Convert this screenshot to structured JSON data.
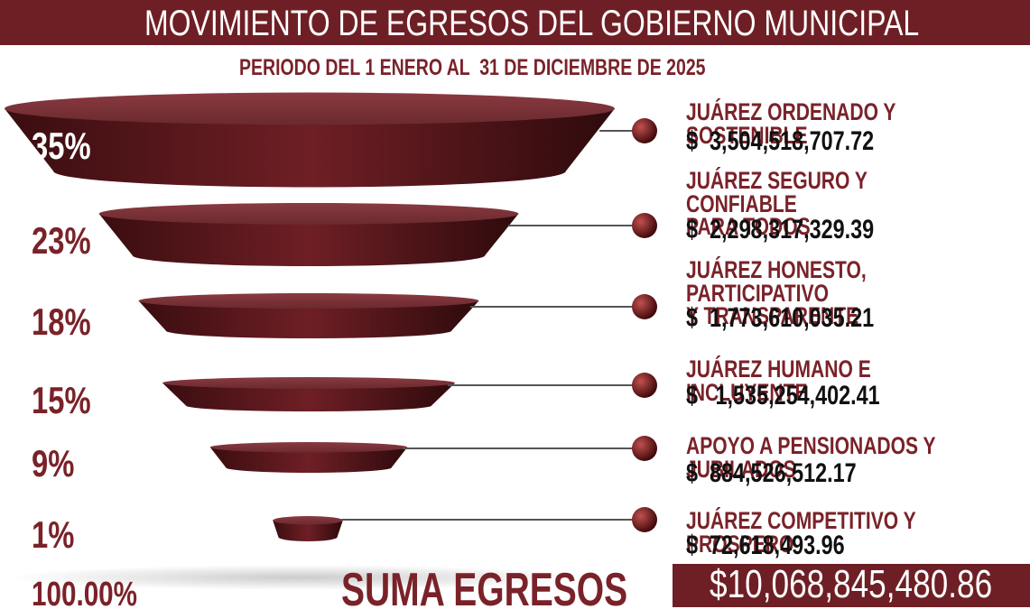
{
  "chart_data": {
    "type": "funnel",
    "title": "MOVIMIENTO DE EGRESOS DEL GOBIERNO MUNICIPAL",
    "subtitle": "PERIODO DEL 1 ENERO AL  31 DE DICIEMBRE DE 2025",
    "categories": [
      "JUÁREZ ORDENADO Y SOSTENIBLE",
      "JUÁREZ SEGURO Y CONFIABLE\nPARA TODOS",
      "JUÁREZ HONESTO, PARTICIPATIVO\nY TRANSPARENTE",
      "JUÁREZ HUMANO E INCLUYENTE",
      "APOYO A PENSIONADOS Y JUBILADOS",
      "JUÁREZ COMPETITIVO Y PROSPERO"
    ],
    "values": [
      35,
      23,
      18,
      15,
      9,
      1
    ],
    "value_labels": [
      "35%",
      "23%",
      "18%",
      "15%",
      "9%",
      "1%"
    ],
    "amounts": [
      3504518707.72,
      2298317329.39,
      1773610035.21,
      1535254402.41,
      884526512.17,
      72618493.96
    ],
    "amount_labels": [
      "$  3,504,518,707.72",
      "$  2,298,317,329.39",
      "$  1,773,610,035.21",
      "$   1,535,254,402.41",
      "$  884,526,512.17",
      "$  72,618,493.96"
    ],
    "total_label": "SUMA EGRESOS",
    "total_percent": 100,
    "total_percent_label": "100.00%",
    "total_amount": 10068845480.86,
    "total_amount_label": "$10,068,845,480.86",
    "color": "#6e1f25"
  }
}
